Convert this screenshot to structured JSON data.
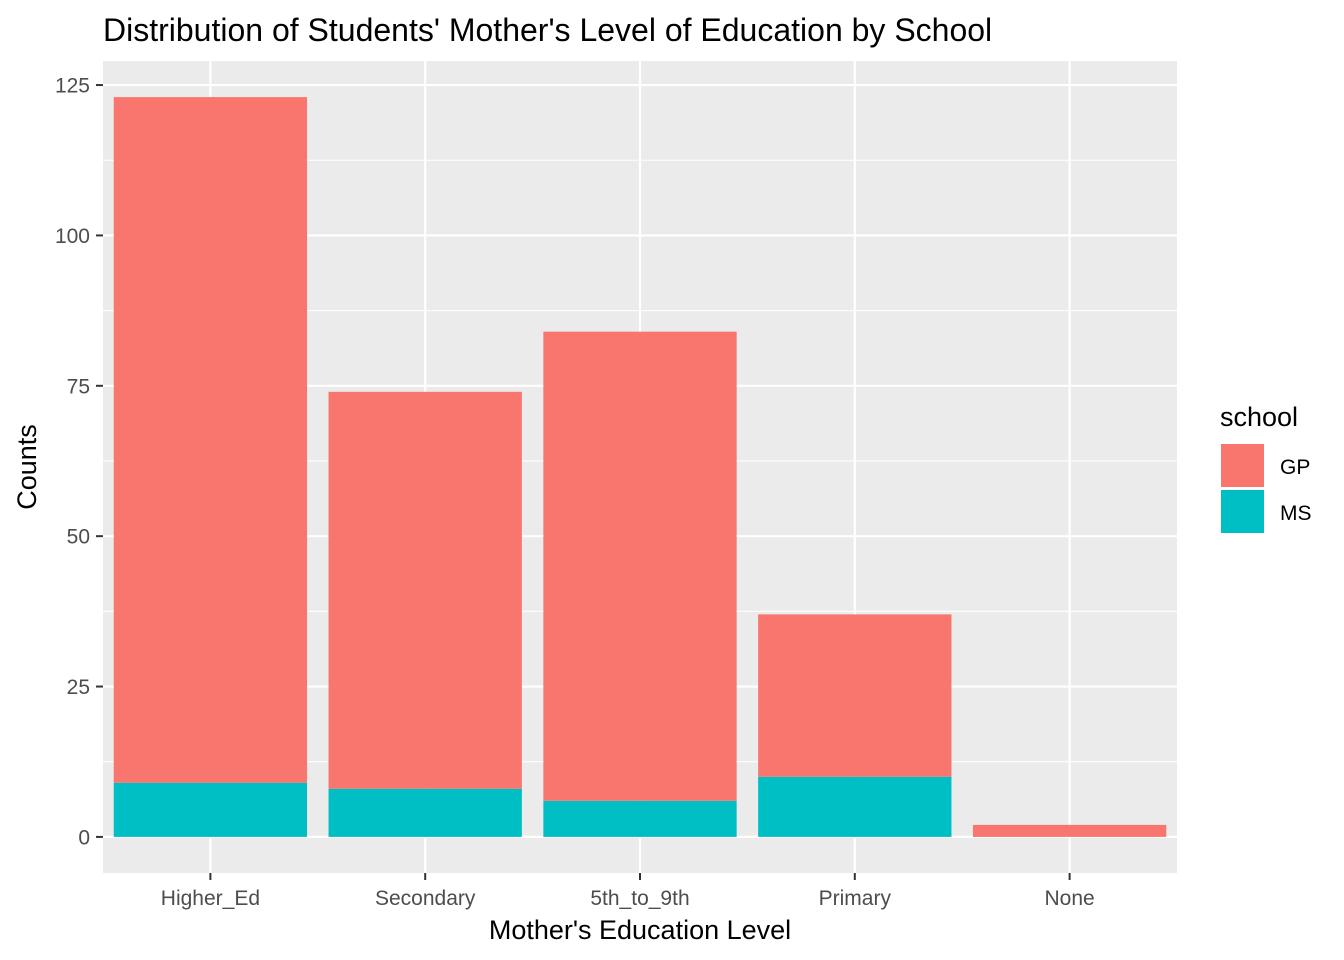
{
  "chart_data": {
    "type": "bar",
    "stacked": true,
    "title": "Distribution of Students' Mother's Level of Education by School",
    "xlabel": "Mother's Education Level",
    "ylabel": "Counts",
    "categories": [
      "Higher_Ed",
      "Secondary",
      "5th_to_9th",
      "Primary",
      "None"
    ],
    "series": [
      {
        "name": "GP",
        "color": "#F8766D",
        "values": [
          114,
          66,
          78,
          27,
          2
        ]
      },
      {
        "name": "MS",
        "color": "#00BFC4",
        "values": [
          9,
          8,
          6,
          10,
          0
        ]
      }
    ],
    "totals": [
      123,
      74,
      84,
      37,
      2
    ],
    "ylim": [
      -6,
      129
    ],
    "yticks": [
      0,
      25,
      50,
      75,
      100,
      125
    ],
    "grid": true,
    "panel_background": "#EBEBEB",
    "legend": {
      "title": "school",
      "position": "right"
    }
  }
}
